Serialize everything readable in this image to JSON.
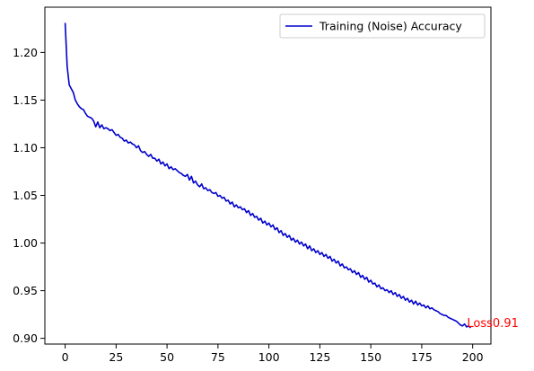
{
  "chart_data": {
    "type": "line",
    "title": "",
    "xlabel": "",
    "ylabel": "",
    "xlim": [
      -9.95,
      208.95
    ],
    "ylim": [
      0.894,
      1.2475
    ],
    "xticks": [
      0,
      25,
      50,
      75,
      100,
      125,
      150,
      175,
      200
    ],
    "yticks": [
      0.9,
      0.95,
      1.0,
      1.05,
      1.1,
      1.15,
      1.2
    ],
    "ytick_labels": [
      "0.90",
      "0.95",
      "1.00",
      "1.05",
      "1.10",
      "1.15",
      "1.20"
    ],
    "grid": false,
    "legend_position": "top-right",
    "series": [
      {
        "name": "Training (Noise) Accuracy",
        "color": "#0000cc",
        "x": [
          0,
          1,
          2,
          3,
          4,
          5,
          6,
          7,
          8,
          9,
          10,
          11,
          12,
          13,
          14,
          15,
          16,
          17,
          18,
          19,
          20,
          21,
          22,
          23,
          24,
          25,
          26,
          27,
          28,
          29,
          30,
          31,
          32,
          33,
          34,
          35,
          36,
          37,
          38,
          39,
          40,
          41,
          42,
          43,
          44,
          45,
          46,
          47,
          48,
          49,
          50,
          51,
          52,
          53,
          54,
          55,
          56,
          57,
          58,
          59,
          60,
          61,
          62,
          63,
          64,
          65,
          66,
          67,
          68,
          69,
          70,
          71,
          72,
          73,
          74,
          75,
          76,
          77,
          78,
          79,
          80,
          81,
          82,
          83,
          84,
          85,
          86,
          87,
          88,
          89,
          90,
          91,
          92,
          93,
          94,
          95,
          96,
          97,
          98,
          99,
          100,
          101,
          102,
          103,
          104,
          105,
          106,
          107,
          108,
          109,
          110,
          111,
          112,
          113,
          114,
          115,
          116,
          117,
          118,
          119,
          120,
          121,
          122,
          123,
          124,
          125,
          126,
          127,
          128,
          129,
          130,
          131,
          132,
          133,
          134,
          135,
          136,
          137,
          138,
          139,
          140,
          141,
          142,
          143,
          144,
          145,
          146,
          147,
          148,
          149,
          150,
          151,
          152,
          153,
          154,
          155,
          156,
          157,
          158,
          159,
          160,
          161,
          162,
          163,
          164,
          165,
          166,
          167,
          168,
          169,
          170,
          171,
          172,
          173,
          174,
          175,
          176,
          177,
          178,
          179,
          180,
          181,
          182,
          183,
          184,
          185,
          186,
          187,
          188,
          189,
          190,
          191,
          192,
          193,
          194,
          195,
          196,
          197,
          198,
          199
        ],
        "y": [
          1.231,
          1.185,
          1.166,
          1.162,
          1.158,
          1.15,
          1.146,
          1.143,
          1.141,
          1.14,
          1.136,
          1.133,
          1.132,
          1.131,
          1.128,
          1.122,
          1.127,
          1.121,
          1.124,
          1.12,
          1.121,
          1.12,
          1.118,
          1.119,
          1.116,
          1.113,
          1.114,
          1.111,
          1.11,
          1.107,
          1.108,
          1.105,
          1.106,
          1.104,
          1.103,
          1.1,
          1.102,
          1.097,
          1.095,
          1.096,
          1.093,
          1.091,
          1.093,
          1.089,
          1.089,
          1.086,
          1.088,
          1.083,
          1.085,
          1.081,
          1.083,
          1.078,
          1.08,
          1.077,
          1.078,
          1.076,
          1.074,
          1.073,
          1.071,
          1.07,
          1.072,
          1.066,
          1.07,
          1.063,
          1.065,
          1.061,
          1.059,
          1.062,
          1.057,
          1.058,
          1.055,
          1.056,
          1.053,
          1.052,
          1.053,
          1.049,
          1.05,
          1.047,
          1.048,
          1.044,
          1.045,
          1.041,
          1.043,
          1.038,
          1.04,
          1.037,
          1.038,
          1.035,
          1.036,
          1.032,
          1.034,
          1.029,
          1.031,
          1.027,
          1.028,
          1.024,
          1.026,
          1.021,
          1.023,
          1.019,
          1.021,
          1.017,
          1.019,
          1.014,
          1.016,
          1.011,
          1.013,
          1.008,
          1.01,
          1.006,
          1.008,
          1.003,
          1.005,
          1.001,
          1.003,
          0.999,
          1.001,
          0.997,
          0.999,
          0.994,
          0.997,
          0.992,
          0.994,
          0.99,
          0.992,
          0.988,
          0.99,
          0.986,
          0.988,
          0.984,
          0.986,
          0.981,
          0.983,
          0.979,
          0.981,
          0.976,
          0.978,
          0.974,
          0.975,
          0.972,
          0.973,
          0.969,
          0.971,
          0.967,
          0.969,
          0.964,
          0.966,
          0.962,
          0.964,
          0.959,
          0.961,
          0.957,
          0.958,
          0.954,
          0.956,
          0.952,
          0.953,
          0.95,
          0.951,
          0.948,
          0.95,
          0.946,
          0.948,
          0.944,
          0.946,
          0.942,
          0.944,
          0.94,
          0.942,
          0.938,
          0.94,
          0.936,
          0.939,
          0.935,
          0.937,
          0.934,
          0.935,
          0.932,
          0.934,
          0.931,
          0.932,
          0.93,
          0.929,
          0.928,
          0.926,
          0.925,
          0.924,
          0.924,
          0.922,
          0.921,
          0.92,
          0.919,
          0.918,
          0.916,
          0.914,
          0.913,
          0.915,
          0.912,
          0.913,
          0.911
        ]
      }
    ],
    "annotations": [
      {
        "text": "Loss0.91",
        "x": 199,
        "y": 0.911,
        "color": "#ff0000"
      }
    ]
  }
}
